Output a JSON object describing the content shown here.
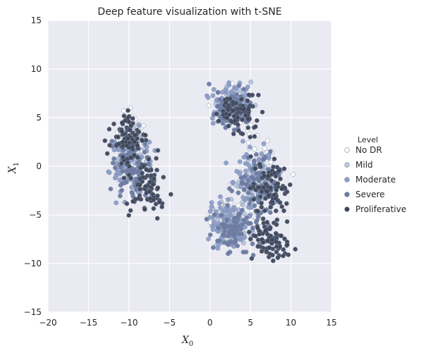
{
  "chart_data": {
    "type": "scatter",
    "title": "Deep feature visualization with t-SNE",
    "xlabel": {
      "base": "X",
      "sub": "0"
    },
    "ylabel": {
      "base": "X",
      "sub": "1"
    },
    "xlim": [
      -20,
      15
    ],
    "ylim": [
      -15,
      15
    ],
    "xticks": [
      -20,
      -15,
      -10,
      -5,
      0,
      5,
      10,
      15
    ],
    "yticks": [
      -15,
      -10,
      -5,
      0,
      5,
      10,
      15
    ],
    "grid": true,
    "background": "#eaeaf2",
    "legend": {
      "title": "Level",
      "placement": "right",
      "entries": [
        "No DR",
        "Mild",
        "Moderate",
        "Severe",
        "Proliferative"
      ]
    },
    "series": [
      {
        "name": "No DR",
        "color": "#ffffff",
        "count": 130,
        "clusters": [
          [
            -9.5,
            3,
            2.5,
            3.2
          ],
          [
            2.5,
            6,
            3.2,
            2.6
          ],
          [
            6.5,
            0.5,
            3.5,
            3.5
          ],
          [
            3,
            -5,
            4,
            3
          ]
        ]
      },
      {
        "name": "Mild",
        "color": "#b8c6df",
        "count": 180,
        "clusters": [
          [
            -10,
            1,
            3,
            4
          ],
          [
            3,
            6.5,
            3.3,
            2.3
          ],
          [
            5.5,
            -2,
            3.8,
            3.8
          ],
          [
            2,
            -6,
            4,
            2.8
          ]
        ]
      },
      {
        "name": "Moderate",
        "color": "#8b9fcc",
        "count": 380,
        "clusters": [
          [
            -10,
            0.5,
            3,
            4.2
          ],
          [
            2.5,
            6.5,
            3.3,
            2.4
          ],
          [
            6,
            -1,
            3.8,
            3.8
          ],
          [
            2,
            -6,
            4,
            2.8
          ]
        ]
      },
      {
        "name": "Severe",
        "color": "#6a7aa3",
        "count": 320,
        "clusters": [
          [
            -9.5,
            0,
            3,
            4.2
          ],
          [
            3,
            6,
            3.2,
            2.5
          ],
          [
            6,
            -2,
            3.8,
            3.8
          ],
          [
            3,
            -6.5,
            4,
            2.8
          ]
        ]
      },
      {
        "name": "Proliferative",
        "color": "#3d4658",
        "count": 420,
        "clusters": [
          [
            -8,
            -2,
            3,
            4
          ],
          [
            3.5,
            5.5,
            3,
            2.5
          ],
          [
            7.5,
            -2,
            3.2,
            3.5
          ],
          [
            7.5,
            -7.5,
            3,
            2.5
          ],
          [
            -10,
            3,
            2.8,
            3
          ]
        ]
      }
    ]
  }
}
